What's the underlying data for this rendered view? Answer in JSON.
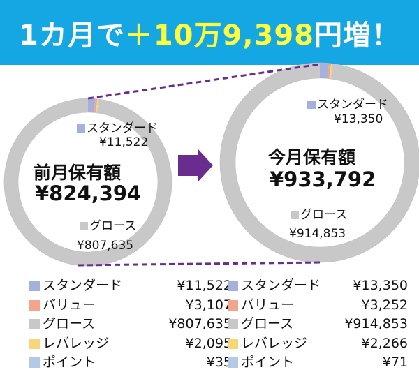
{
  "headline": {
    "prefix": "1カ月で",
    "gain": "＋10万9,398",
    "suffix": "円増！"
  },
  "colors": {
    "banner": "#15a7e3",
    "standard": "#a3b1dc",
    "value": "#f2a58c",
    "growth": "#c8c8c8",
    "leverage": "#f7d579",
    "point": "#b3c9e6",
    "arrow": "#6a2c8e",
    "connector": "#6a2c8e"
  },
  "chart_data": [
    {
      "type": "pie",
      "title": "前月保有額",
      "total_label": "¥824,394",
      "slices": [
        {
          "key": "standard",
          "label": "スタンダード",
          "value": 11522,
          "value_label": "¥11,522"
        },
        {
          "key": "value",
          "label": "バリュー",
          "value": 3107,
          "value_label": "¥3,107"
        },
        {
          "key": "growth",
          "label": "グロース",
          "value": 807635,
          "value_label": "¥807,635"
        },
        {
          "key": "leverage",
          "label": "レバレッジ",
          "value": 2095,
          "value_label": "¥2,095"
        },
        {
          "key": "point",
          "label": "ポイント",
          "value": 35,
          "value_label": "¥35"
        }
      ]
    },
    {
      "type": "pie",
      "title": "今月保有額",
      "total_label": "¥933,792",
      "slices": [
        {
          "key": "standard",
          "label": "スタンダード",
          "value": 13350,
          "value_label": "¥13,350"
        },
        {
          "key": "value",
          "label": "バリュー",
          "value": 3252,
          "value_label": "¥3,252"
        },
        {
          "key": "growth",
          "label": "グロース",
          "value": 914853,
          "value_label": "¥914,853"
        },
        {
          "key": "leverage",
          "label": "レバレッジ",
          "value": 2266,
          "value_label": "¥2,266"
        },
        {
          "key": "point",
          "label": "ポイント",
          "value": 71,
          "value_label": "¥71"
        }
      ]
    }
  ]
}
